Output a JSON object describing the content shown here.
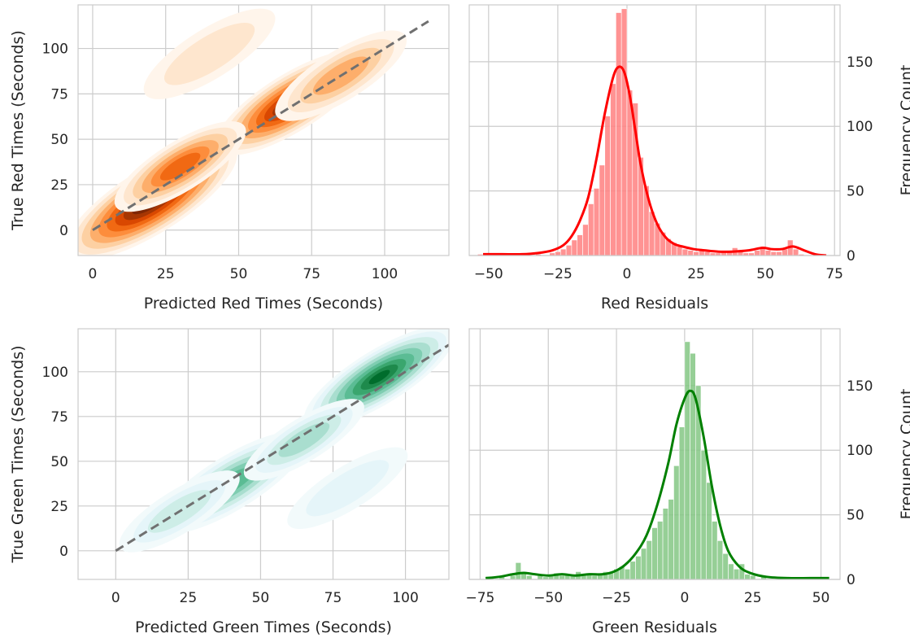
{
  "colors": {
    "red_kde": [
      "#fff5eb",
      "#fee6ce",
      "#fdd0a2",
      "#fdae6b",
      "#fd8d3c",
      "#f16913",
      "#d94801",
      "#a63603",
      "#7f2704",
      "#3b0a02"
    ],
    "green_kde": [
      "#f2fafb",
      "#e5f5f9",
      "#cdede7",
      "#a9decf",
      "#7fcdb1",
      "#5bbc94",
      "#3aa66e",
      "#1e8a4c",
      "#006d2c"
    ],
    "red_hist": "#ff8080",
    "red_line": "#ff0000",
    "green_hist": "#84c784",
    "green_line": "#008000",
    "diagonal": "#707070"
  },
  "chart_data": [
    {
      "type": "contour-kde",
      "xlabel": "Predicted Red Times (Seconds)",
      "ylabel": "True Red Times (Seconds)",
      "xlim": [
        -5,
        122
      ],
      "ylim": [
        -14,
        124
      ],
      "xticks": [
        0,
        25,
        50,
        75,
        100
      ],
      "yticks": [
        0,
        25,
        50,
        75,
        100
      ],
      "grid": true,
      "reference_line": {
        "from": [
          0,
          0
        ],
        "to": [
          115,
          115
        ],
        "style": "dashed"
      },
      "density_peaks": [
        {
          "x": 20,
          "y": 16,
          "weight": 1.0
        },
        {
          "x": 68,
          "y": 70,
          "weight": 0.75
        },
        {
          "x": 30,
          "y": 35,
          "weight": 0.35
        },
        {
          "x": 85,
          "y": 85,
          "weight": 0.2
        },
        {
          "x": 40,
          "y": 97,
          "weight": 0.05
        }
      ]
    },
    {
      "type": "histogram",
      "xlabel": "Red Residuals",
      "ylabel": "Frequency Count",
      "xlim": [
        -57,
        77
      ],
      "ylim": [
        0,
        194
      ],
      "xticks": [
        -50,
        -25,
        0,
        25,
        50,
        75
      ],
      "yticks": [
        0,
        50,
        100,
        150
      ],
      "grid": true,
      "bin_width": 2,
      "bins": [
        {
          "x": -53,
          "count": 1
        },
        {
          "x": -45,
          "count": 1
        },
        {
          "x": -38,
          "count": 1
        },
        {
          "x": -32,
          "count": 1
        },
        {
          "x": -27,
          "count": 2
        },
        {
          "x": -25,
          "count": 3
        },
        {
          "x": -23,
          "count": 5
        },
        {
          "x": -21,
          "count": 8
        },
        {
          "x": -19,
          "count": 12
        },
        {
          "x": -17,
          "count": 16
        },
        {
          "x": -15,
          "count": 24
        },
        {
          "x": -13,
          "count": 40
        },
        {
          "x": -11,
          "count": 52
        },
        {
          "x": -9,
          "count": 70
        },
        {
          "x": -7,
          "count": 108
        },
        {
          "x": -5,
          "count": 133
        },
        {
          "x": -3,
          "count": 188
        },
        {
          "x": -1,
          "count": 191
        },
        {
          "x": 1,
          "count": 128
        },
        {
          "x": 3,
          "count": 118
        },
        {
          "x": 5,
          "count": 76
        },
        {
          "x": 7,
          "count": 54
        },
        {
          "x": 9,
          "count": 34
        },
        {
          "x": 11,
          "count": 25
        },
        {
          "x": 13,
          "count": 18
        },
        {
          "x": 15,
          "count": 13
        },
        {
          "x": 17,
          "count": 10
        },
        {
          "x": 19,
          "count": 7
        },
        {
          "x": 21,
          "count": 5
        },
        {
          "x": 23,
          "count": 4
        },
        {
          "x": 25,
          "count": 3
        },
        {
          "x": 27,
          "count": 5
        },
        {
          "x": 29,
          "count": 3
        },
        {
          "x": 31,
          "count": 2
        },
        {
          "x": 33,
          "count": 2
        },
        {
          "x": 35,
          "count": 3
        },
        {
          "x": 37,
          "count": 4
        },
        {
          "x": 39,
          "count": 6
        },
        {
          "x": 41,
          "count": 3
        },
        {
          "x": 43,
          "count": 2
        },
        {
          "x": 45,
          "count": 2
        },
        {
          "x": 47,
          "count": 4
        },
        {
          "x": 49,
          "count": 6
        },
        {
          "x": 51,
          "count": 4
        },
        {
          "x": 53,
          "count": 3
        },
        {
          "x": 55,
          "count": 3
        },
        {
          "x": 57,
          "count": 5
        },
        {
          "x": 59,
          "count": 12
        },
        {
          "x": 61,
          "count": 5
        },
        {
          "x": 63,
          "count": 1
        },
        {
          "x": 69,
          "count": 1
        }
      ],
      "kde": {
        "x": [
          -52,
          -45,
          -38,
          -32,
          -27,
          -23,
          -20,
          -17,
          -14,
          -11,
          -8,
          -5,
          -3,
          -1,
          1,
          3,
          5,
          8,
          11,
          14,
          17,
          20,
          24,
          28,
          33,
          38,
          44,
          49,
          52,
          56,
          60,
          64,
          68,
          72
        ],
        "y": [
          1,
          1,
          1,
          2,
          4,
          8,
          15,
          27,
          45,
          75,
          110,
          138,
          146,
          142,
          124,
          97,
          70,
          42,
          24,
          14,
          9,
          7,
          5,
          4,
          3,
          3,
          4,
          6,
          5,
          5,
          7,
          4,
          1,
          0
        ]
      }
    },
    {
      "type": "contour-kde",
      "xlabel": "Predicted Green Times (Seconds)",
      "ylabel": "True Green Times (Seconds)",
      "xlim": [
        -13,
        115
      ],
      "ylim": [
        -16,
        124
      ],
      "xticks": [
        0,
        25,
        50,
        75,
        100
      ],
      "yticks": [
        0,
        25,
        50,
        75,
        100
      ],
      "grid": true,
      "reference_line": {
        "from": [
          0,
          0
        ],
        "to": [
          115,
          115
        ],
        "style": "dashed"
      },
      "density_peaks": [
        {
          "x": 91,
          "y": 97,
          "weight": 1.0
        },
        {
          "x": 40,
          "y": 38,
          "weight": 0.55
        },
        {
          "x": 65,
          "y": 62,
          "weight": 0.18
        },
        {
          "x": 22,
          "y": 22,
          "weight": 0.1
        },
        {
          "x": 80,
          "y": 35,
          "weight": 0.05
        }
      ]
    },
    {
      "type": "histogram",
      "xlabel": "Green Residuals",
      "ylabel": "Frequency Count",
      "xlim": [
        -79,
        57
      ],
      "ylim": [
        0,
        194
      ],
      "xticks": [
        -75,
        -50,
        -25,
        0,
        25,
        50
      ],
      "yticks": [
        0,
        50,
        100,
        150
      ],
      "grid": true,
      "bin_width": 2,
      "bins": [
        {
          "x": -71,
          "count": 2
        },
        {
          "x": -67,
          "count": 2
        },
        {
          "x": -63,
          "count": 3
        },
        {
          "x": -61,
          "count": 13
        },
        {
          "x": -59,
          "count": 6
        },
        {
          "x": -57,
          "count": 3
        },
        {
          "x": -53,
          "count": 3
        },
        {
          "x": -51,
          "count": 2
        },
        {
          "x": -49,
          "count": 4
        },
        {
          "x": -47,
          "count": 5
        },
        {
          "x": -45,
          "count": 3
        },
        {
          "x": -43,
          "count": 4
        },
        {
          "x": -41,
          "count": 3
        },
        {
          "x": -39,
          "count": 6
        },
        {
          "x": -37,
          "count": 3
        },
        {
          "x": -35,
          "count": 4
        },
        {
          "x": -33,
          "count": 3
        },
        {
          "x": -31,
          "count": 4
        },
        {
          "x": -29,
          "count": 6
        },
        {
          "x": -27,
          "count": 5
        },
        {
          "x": -25,
          "count": 8
        },
        {
          "x": -23,
          "count": 10
        },
        {
          "x": -21,
          "count": 8
        },
        {
          "x": -19,
          "count": 14
        },
        {
          "x": -17,
          "count": 18
        },
        {
          "x": -15,
          "count": 24
        },
        {
          "x": -13,
          "count": 30
        },
        {
          "x": -11,
          "count": 40
        },
        {
          "x": -9,
          "count": 45
        },
        {
          "x": -7,
          "count": 55
        },
        {
          "x": -5,
          "count": 62
        },
        {
          "x": -3,
          "count": 88
        },
        {
          "x": -1,
          "count": 118
        },
        {
          "x": 1,
          "count": 184
        },
        {
          "x": 3,
          "count": 175
        },
        {
          "x": 5,
          "count": 150
        },
        {
          "x": 7,
          "count": 100
        },
        {
          "x": 9,
          "count": 75
        },
        {
          "x": 11,
          "count": 45
        },
        {
          "x": 13,
          "count": 30
        },
        {
          "x": 15,
          "count": 20
        },
        {
          "x": 17,
          "count": 12
        },
        {
          "x": 19,
          "count": 8
        },
        {
          "x": 21,
          "count": 12
        },
        {
          "x": 23,
          "count": 4
        },
        {
          "x": 25,
          "count": 3
        },
        {
          "x": 29,
          "count": 2
        },
        {
          "x": 41,
          "count": 1
        },
        {
          "x": 47,
          "count": 1
        }
      ],
      "kde": {
        "x": [
          -73,
          -68,
          -63,
          -59,
          -55,
          -50,
          -45,
          -40,
          -35,
          -30,
          -26,
          -22,
          -18,
          -14,
          -10,
          -6,
          -3,
          0,
          2,
          4,
          7,
          10,
          13,
          16,
          20,
          24,
          30,
          38,
          46,
          53
        ],
        "y": [
          1,
          2,
          4,
          5,
          4,
          3,
          4,
          3,
          4,
          4,
          6,
          11,
          20,
          34,
          58,
          90,
          120,
          140,
          146,
          140,
          110,
          72,
          42,
          22,
          10,
          5,
          2,
          1,
          1,
          1
        ]
      }
    }
  ]
}
